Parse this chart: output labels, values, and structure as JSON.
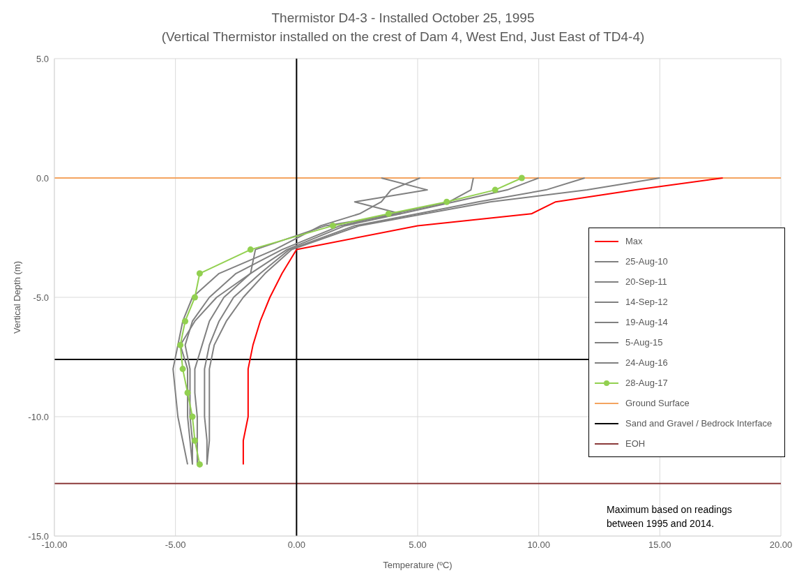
{
  "chart_data": {
    "type": "line",
    "orientation": "horizontal",
    "title": "Thermistor D4-3 - Installed October 25, 1995",
    "subtitle": "(Vertical Thermistor installed on the crest of Dam 4, West End, Just East of TD4-4)",
    "xlabel": "Temperature (ºC)",
    "ylabel": "Vertical Depth (m)",
    "x": [
      0,
      -0.5,
      -1,
      -1.5,
      -2,
      -3,
      -4,
      -5,
      -6,
      -7,
      -8,
      -9,
      -10,
      -11,
      -12
    ],
    "series": [
      {
        "name": "Max",
        "color": "#ff0000",
        "marker": "none",
        "values": [
          17.6,
          14.0,
          10.7,
          9.7,
          5.0,
          0.0,
          -0.6,
          -1.1,
          -1.5,
          -1.8,
          -2.0,
          -2.0,
          -2.0,
          -2.2,
          -2.2
        ]
      },
      {
        "name": "25-Aug-10",
        "color": "#808080",
        "marker": "none",
        "values": [
          3.5,
          5.4,
          2.4,
          4.3,
          1.2,
          -1.7,
          -1.9,
          -3.3,
          -4.2,
          -4.8,
          -4.5,
          -4.5,
          -4.5,
          -4.4,
          -4.3
        ]
      },
      {
        "name": "20-Sep-11",
        "color": "#808080",
        "marker": "none",
        "values": [
          5.1,
          3.9,
          3.5,
          2.6,
          1.0,
          -0.9,
          -3.2,
          -4.3,
          -4.7,
          -4.9,
          -5.1,
          -5.0,
          -4.9,
          -4.7,
          -4.5
        ]
      },
      {
        "name": "14-Sep-12",
        "color": "#808080",
        "marker": "none",
        "values": [
          7.3,
          7.2,
          6.3,
          4.0,
          1.8,
          -0.6,
          -2.5,
          -3.6,
          -4.3,
          -4.6,
          -4.4,
          -4.4,
          -4.4,
          -4.3,
          -4.3
        ]
      },
      {
        "name": "19-Aug-14",
        "color": "#808080",
        "marker": "none",
        "values": [
          10.0,
          8.7,
          6.5,
          4.3,
          2.0,
          -0.4,
          -1.9,
          -3.0,
          -3.6,
          -3.9,
          -4.2,
          -4.2,
          -4.1,
          -4.1,
          -4.1
        ]
      },
      {
        "name": "5-Aug-15",
        "color": "#808080",
        "marker": "none",
        "values": [
          11.9,
          10.3,
          7.5,
          5.0,
          2.4,
          -0.3,
          -1.5,
          -2.6,
          -3.2,
          -3.6,
          -3.8,
          -3.8,
          -3.8,
          -3.7,
          -3.7
        ]
      },
      {
        "name": "24-Aug-16",
        "color": "#808080",
        "marker": "none",
        "values": [
          15.0,
          12.0,
          8.0,
          5.3,
          2.6,
          -0.2,
          -1.3,
          -2.2,
          -2.9,
          -3.4,
          -3.6,
          -3.6,
          -3.6,
          -3.6,
          -3.7
        ]
      },
      {
        "name": "28-Aug-17",
        "color": "#92d050",
        "marker": "circle",
        "values": [
          9.3,
          8.2,
          6.2,
          3.8,
          1.5,
          -1.9,
          -4.0,
          -4.2,
          -4.6,
          -4.8,
          -4.7,
          -4.5,
          -4.3,
          -4.2,
          -4.0
        ]
      }
    ],
    "ref_lines": [
      {
        "axis": "y",
        "value": 0,
        "label": "Ground Surface",
        "color": "#f4a460"
      },
      {
        "axis": "y",
        "value": -7.6,
        "label": "Sand and Gravel / Bedrock Interface",
        "color": "#000000"
      },
      {
        "axis": "y",
        "value": -12.8,
        "label": "EOH",
        "color": "#8b3a3a"
      },
      {
        "axis": "x",
        "value": 0,
        "color": "#000000"
      }
    ],
    "xlim": [
      -10,
      20
    ],
    "xticks": [
      {
        "value": -10,
        "label": "-10.00"
      },
      {
        "value": -5,
        "label": "-5.00"
      },
      {
        "value": 0,
        "label": "0.00"
      },
      {
        "value": 5,
        "label": "5.00"
      },
      {
        "value": 10,
        "label": "10.00"
      },
      {
        "value": 15,
        "label": "15.00"
      },
      {
        "value": 20,
        "label": "20.00"
      }
    ],
    "ylim": [
      -15,
      5
    ],
    "yticks": [
      {
        "value": -15,
        "label": "-15.0"
      },
      {
        "value": -10,
        "label": "-10.0"
      },
      {
        "value": -5,
        "label": "-5.0"
      },
      {
        "value": 0,
        "label": "0.0"
      },
      {
        "value": 5,
        "label": "5.0"
      }
    ],
    "grid": true,
    "legend": "right",
    "line_style": "solid",
    "annotations": [
      "Maximum based on readings between 1995 and 2014."
    ]
  }
}
